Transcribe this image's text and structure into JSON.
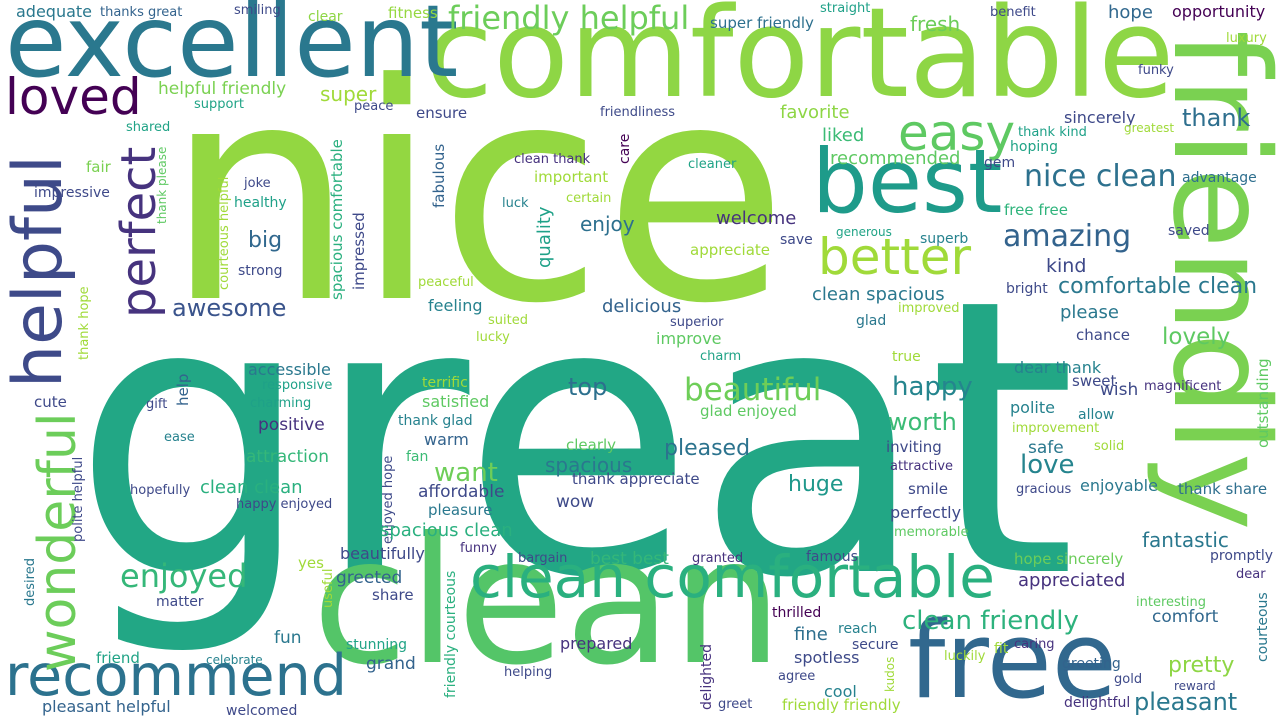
{
  "words": [
    {
      "text": "great"
    },
    {
      "text": "nice"
    },
    {
      "text": "comfortable"
    },
    {
      "text": "clean"
    },
    {
      "text": "friendly"
    },
    {
      "text": "excellent"
    },
    {
      "text": "best"
    },
    {
      "text": "free"
    },
    {
      "text": "helpful"
    },
    {
      "text": "clean comfortable"
    },
    {
      "text": "recommend"
    },
    {
      "text": "wonderful"
    },
    {
      "text": "perfect"
    },
    {
      "text": "loved"
    },
    {
      "text": "easy"
    },
    {
      "text": "better"
    },
    {
      "text": "friendly helpful"
    },
    {
      "text": "nice clean"
    },
    {
      "text": "amazing"
    },
    {
      "text": "enjoyed"
    },
    {
      "text": "beautiful"
    },
    {
      "text": "clean friendly"
    },
    {
      "text": "comfortable clean"
    },
    {
      "text": "awesome"
    },
    {
      "text": "love"
    },
    {
      "text": "pleasant"
    },
    {
      "text": "happy"
    },
    {
      "text": "lovely"
    },
    {
      "text": "pretty"
    },
    {
      "text": "worth"
    },
    {
      "text": "thank"
    },
    {
      "text": "top"
    },
    {
      "text": "pleased"
    },
    {
      "text": "want"
    },
    {
      "text": "spacious"
    },
    {
      "text": "huge"
    },
    {
      "text": "fantastic"
    },
    {
      "text": "clean spacious"
    },
    {
      "text": "kind"
    },
    {
      "text": "please"
    },
    {
      "text": "super"
    },
    {
      "text": "fresh"
    },
    {
      "text": "big"
    },
    {
      "text": "enjoy"
    },
    {
      "text": "welcome"
    },
    {
      "text": "liked"
    },
    {
      "text": "favorite"
    },
    {
      "text": "recommended"
    },
    {
      "text": "hope"
    },
    {
      "text": "opportunity"
    },
    {
      "text": "adequate"
    },
    {
      "text": "thanks great"
    },
    {
      "text": "smiling"
    },
    {
      "text": "clear"
    },
    {
      "text": "fitness"
    },
    {
      "text": "straight"
    },
    {
      "text": "benefit"
    },
    {
      "text": "luxury"
    },
    {
      "text": "super friendly"
    },
    {
      "text": "helpful friendly"
    },
    {
      "text": "support"
    },
    {
      "text": "peace"
    },
    {
      "text": "ensure"
    },
    {
      "text": "friendliness"
    },
    {
      "text": "sincerely"
    },
    {
      "text": "funky"
    },
    {
      "text": "greatest"
    },
    {
      "text": "thank kind"
    },
    {
      "text": "hoping"
    },
    {
      "text": "shared"
    },
    {
      "text": "fair"
    },
    {
      "text": "thank please"
    },
    {
      "text": "impressive"
    },
    {
      "text": "joke"
    },
    {
      "text": "healthy"
    },
    {
      "text": "courteous helpful"
    },
    {
      "text": "spacious comfortable"
    },
    {
      "text": "fabulous"
    },
    {
      "text": "clean thank"
    },
    {
      "text": "care"
    },
    {
      "text": "cleaner"
    },
    {
      "text": "important"
    },
    {
      "text": "luck"
    },
    {
      "text": "certain"
    },
    {
      "text": "quality"
    },
    {
      "text": "gem"
    },
    {
      "text": "advantage"
    },
    {
      "text": "free free"
    },
    {
      "text": "generous"
    },
    {
      "text": "save"
    },
    {
      "text": "superb"
    },
    {
      "text": "saved"
    },
    {
      "text": "appreciate"
    },
    {
      "text": "impressed"
    },
    {
      "text": "strong"
    },
    {
      "text": "peaceful"
    },
    {
      "text": "thank hope"
    },
    {
      "text": "bright"
    },
    {
      "text": "feeling"
    },
    {
      "text": "suited"
    },
    {
      "text": "lucky"
    },
    {
      "text": "superior"
    },
    {
      "text": "delicious"
    },
    {
      "text": "improve"
    },
    {
      "text": "charm"
    },
    {
      "text": "glad"
    },
    {
      "text": "improved"
    },
    {
      "text": "chance"
    },
    {
      "text": "true"
    },
    {
      "text": "outstanding"
    },
    {
      "text": "accessible"
    },
    {
      "text": "responsive"
    },
    {
      "text": "charming"
    },
    {
      "text": "gift"
    },
    {
      "text": "help"
    },
    {
      "text": "cute"
    },
    {
      "text": "ease"
    },
    {
      "text": "positive"
    },
    {
      "text": "terrific"
    },
    {
      "text": "satisfied"
    },
    {
      "text": "glad enjoyed"
    },
    {
      "text": "dear thank"
    },
    {
      "text": "sweet"
    },
    {
      "text": "wish"
    },
    {
      "text": "magnificent"
    },
    {
      "text": "polite"
    },
    {
      "text": "allow"
    },
    {
      "text": "improvement"
    },
    {
      "text": "attraction"
    },
    {
      "text": "thank glad"
    },
    {
      "text": "warm"
    },
    {
      "text": "clearly"
    },
    {
      "text": "inviting"
    },
    {
      "text": "attractive"
    },
    {
      "text": "safe"
    },
    {
      "text": "solid"
    },
    {
      "text": "fan"
    },
    {
      "text": "thank appreciate"
    },
    {
      "text": "hopefully"
    },
    {
      "text": "clean clean"
    },
    {
      "text": "happy enjoyed"
    },
    {
      "text": "affordable"
    },
    {
      "text": "pleasure"
    },
    {
      "text": "enjoyed hope"
    },
    {
      "text": "wow"
    },
    {
      "text": "smile"
    },
    {
      "text": "perfectly"
    },
    {
      "text": "gracious"
    },
    {
      "text": "enjoyable"
    },
    {
      "text": "thank share"
    },
    {
      "text": "polite helpful"
    },
    {
      "text": "spacious clean"
    },
    {
      "text": "memorable"
    },
    {
      "text": "beautifully"
    },
    {
      "text": "funny"
    },
    {
      "text": "bargain"
    },
    {
      "text": "best best"
    },
    {
      "text": "granted"
    },
    {
      "text": "famous"
    },
    {
      "text": "hope sincerely"
    },
    {
      "text": "promptly"
    },
    {
      "text": "yes"
    },
    {
      "text": "greeted"
    },
    {
      "text": "share"
    },
    {
      "text": "appreciated"
    },
    {
      "text": "dear"
    },
    {
      "text": "desired"
    },
    {
      "text": "matter"
    },
    {
      "text": "useful"
    },
    {
      "text": "interesting"
    },
    {
      "text": "friendly courteous"
    },
    {
      "text": "comfort"
    },
    {
      "text": "courteous"
    },
    {
      "text": "thrilled"
    },
    {
      "text": "fine"
    },
    {
      "text": "reach"
    },
    {
      "text": "fun"
    },
    {
      "text": "prepared"
    },
    {
      "text": "stunning"
    },
    {
      "text": "secure"
    },
    {
      "text": "caring"
    },
    {
      "text": "fit"
    },
    {
      "text": "friend"
    },
    {
      "text": "celebrate"
    },
    {
      "text": "grand"
    },
    {
      "text": "spotless"
    },
    {
      "text": "luckily"
    },
    {
      "text": "greeting"
    },
    {
      "text": "helping"
    },
    {
      "text": "agree"
    },
    {
      "text": "kudos"
    },
    {
      "text": "gold"
    },
    {
      "text": "reward"
    },
    {
      "text": "cool"
    },
    {
      "text": "delighted"
    },
    {
      "text": "pleasant helpful"
    },
    {
      "text": "welcomed"
    },
    {
      "text": "greet"
    },
    {
      "text": "friendly friendly"
    },
    {
      "text": "delightful"
    }
  ]
}
